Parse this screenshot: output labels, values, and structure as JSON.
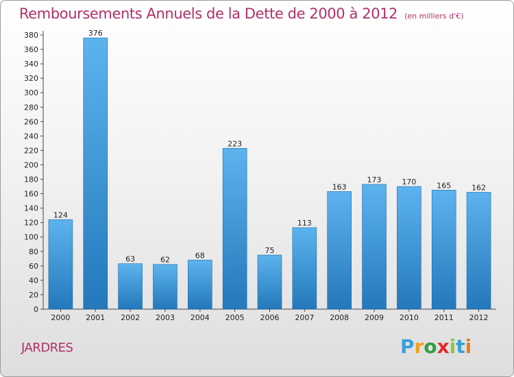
{
  "title": "Remboursements Annuels de la Dette de 2000 à 2012",
  "subtitle": "(en milliers d'€)",
  "commune": "JARDRES",
  "logo": {
    "letters": [
      "P",
      "r",
      "o",
      "x",
      "i",
      "t",
      "i"
    ],
    "colors": [
      "#3a9fd8",
      "#f0a21c",
      "#2f9f3d",
      "#e32b2b",
      "#8cc63f",
      "#3a9fd8",
      "#e87e1e"
    ]
  },
  "colors": {
    "bar_top": "#5db3ee",
    "bar_bottom": "#2478bb",
    "title": "#b0306a"
  },
  "chart_data": {
    "type": "bar",
    "title": "Remboursements Annuels de la Dette de 2000 à 2012",
    "subtitle": "(en milliers d'€)",
    "categories": [
      "2000",
      "2001",
      "2002",
      "2003",
      "2004",
      "2005",
      "2006",
      "2007",
      "2008",
      "2009",
      "2010",
      "2011",
      "2012"
    ],
    "values": [
      124,
      376,
      63,
      62,
      68,
      223,
      75,
      113,
      163,
      173,
      170,
      165,
      162
    ],
    "ylim": [
      0,
      380
    ],
    "yticks": [
      0,
      20,
      40,
      60,
      80,
      100,
      120,
      140,
      160,
      180,
      200,
      220,
      240,
      260,
      280,
      300,
      320,
      340,
      360,
      380
    ],
    "grid": false,
    "xlabel": "",
    "ylabel": ""
  }
}
